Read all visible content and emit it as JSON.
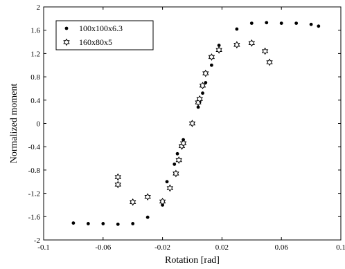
{
  "chart_data": {
    "type": "scatter",
    "xlabel": "Rotation [rad]",
    "ylabel": "Normalized moment",
    "xlim": [
      -0.1,
      0.1
    ],
    "ylim": [
      -2,
      2
    ],
    "xticks": [
      -0.1,
      -0.06,
      -0.02,
      0.02,
      0.06,
      0.1
    ],
    "xtick_labels": [
      "-0.1",
      "-0.06",
      "-0.02",
      "0.02",
      "0.06",
      "0.1"
    ],
    "yticks": [
      -2,
      -1.6,
      -1.2,
      -0.8,
      -0.4,
      0,
      0.4,
      0.8,
      1.2,
      1.6,
      2
    ],
    "ytick_labels": [
      "-2",
      "-1.6",
      "-1.2",
      "-0.8",
      "-0.4",
      "0",
      "0.4",
      "0.8",
      "1.2",
      "1.6",
      "2"
    ],
    "grid": false,
    "legend_position": "top-left",
    "series": [
      {
        "name": "100x100x6.3",
        "marker": "dot",
        "x": [
          -0.08,
          -0.07,
          -0.06,
          -0.05,
          -0.04,
          -0.03,
          -0.02,
          -0.017,
          -0.012,
          -0.01,
          -0.007,
          -0.006,
          0,
          0.004,
          0.005,
          0.007,
          0.009,
          0.013,
          0.018,
          0.03,
          0.04,
          0.05,
          0.06,
          0.07,
          0.08,
          0.085
        ],
        "y": [
          -1.71,
          -1.72,
          -1.72,
          -1.73,
          -1.72,
          -1.61,
          -1.4,
          -1.0,
          -0.7,
          -0.52,
          -0.4,
          -0.28,
          0,
          0.28,
          0.37,
          0.52,
          0.7,
          1.0,
          1.34,
          1.62,
          1.72,
          1.73,
          1.72,
          1.72,
          1.7,
          1.67
        ]
      },
      {
        "name": "160x80x5",
        "marker": "hexagram",
        "x": [
          -0.05,
          -0.05,
          -0.04,
          -0.03,
          -0.02,
          -0.015,
          -0.011,
          -0.009,
          -0.007,
          -0.006,
          0,
          0.004,
          0.005,
          0.007,
          0.009,
          0.013,
          0.018,
          0.03,
          0.04,
          0.049,
          0.052
        ],
        "y": [
          -0.92,
          -1.05,
          -1.35,
          -1.26,
          -1.34,
          -1.11,
          -0.86,
          -0.63,
          -0.39,
          -0.34,
          0,
          0.36,
          0.42,
          0.65,
          0.86,
          1.14,
          1.26,
          1.35,
          1.38,
          1.24,
          1.05
        ]
      }
    ]
  }
}
